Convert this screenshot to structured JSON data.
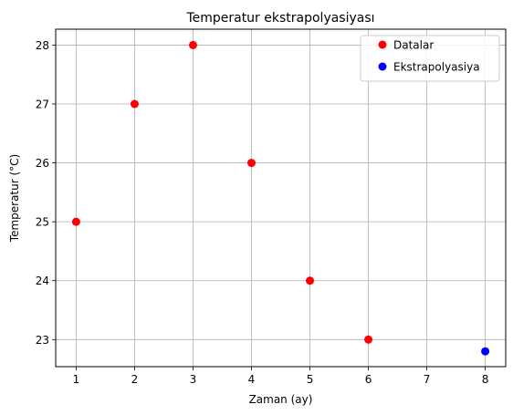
{
  "chart_data": {
    "type": "scatter",
    "title": "Temperatur ekstrapolyasiyası",
    "xlabel": "Zaman (ay)",
    "ylabel": "Temperatur (°C)",
    "xlim": [
      0.65,
      8.35
    ],
    "ylim": [
      22.54,
      28.27
    ],
    "xticks": [
      1,
      2,
      3,
      4,
      5,
      6,
      7,
      8
    ],
    "yticks": [
      23,
      24,
      25,
      26,
      27,
      28
    ],
    "grid": true,
    "legend_position": "top-right",
    "series": [
      {
        "name": "Datalar",
        "color": "#ff0000",
        "points": [
          {
            "x": 1,
            "y": 25
          },
          {
            "x": 2,
            "y": 27
          },
          {
            "x": 3,
            "y": 28
          },
          {
            "x": 4,
            "y": 26
          },
          {
            "x": 5,
            "y": 24
          },
          {
            "x": 6,
            "y": 23
          }
        ]
      },
      {
        "name": "Ekstrapolyasiya",
        "color": "#0000ff",
        "points": [
          {
            "x": 8,
            "y": 22.8
          }
        ]
      }
    ]
  }
}
